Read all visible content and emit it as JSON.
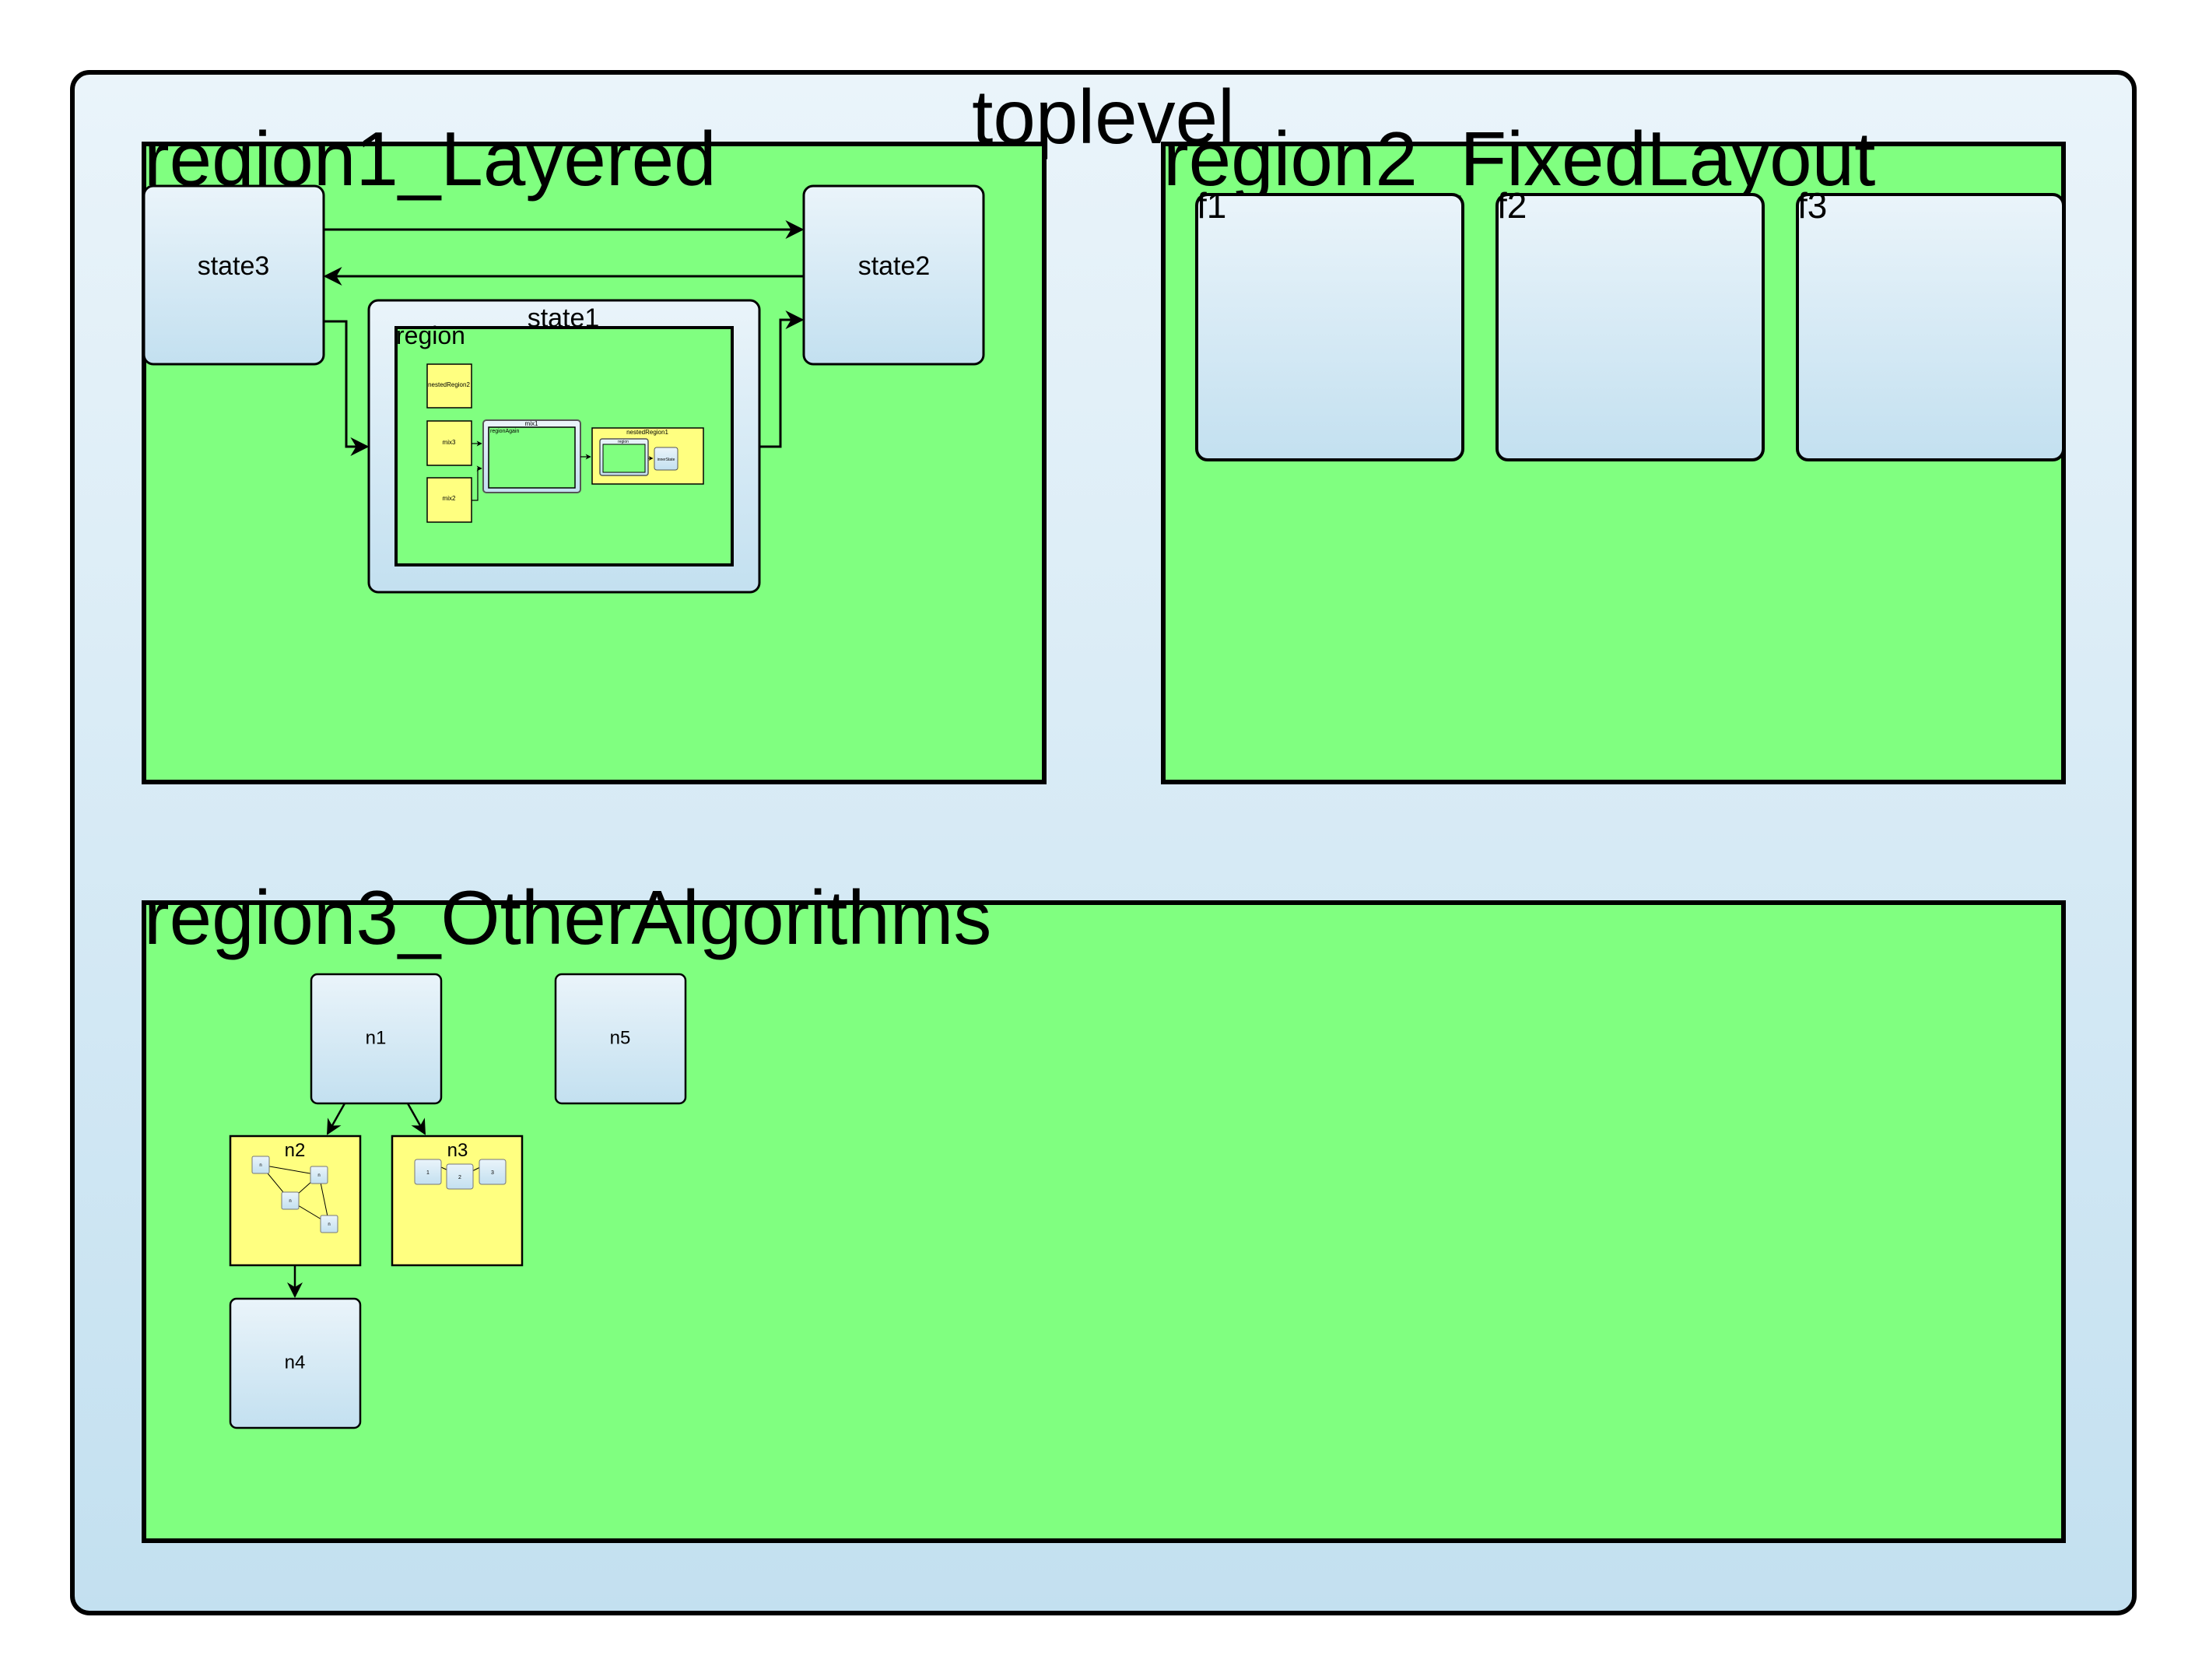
{
  "toplevel": {
    "title": "toplevel"
  },
  "region1": {
    "title": "region1_Layered",
    "state3": "state3",
    "state2": "state2",
    "state1": {
      "title": "state1",
      "region_label": "region",
      "nested_region2": "nestedRegion2",
      "mix3": "mix3",
      "mix2": "mix2",
      "mix1": "mix1",
      "region_again": "regionAgain",
      "nested_region1": "nestedRegion1",
      "nested_inner_region": "region",
      "nested_inner_state": "innerState"
    }
  },
  "region2": {
    "title": "region2_FixedLayout",
    "states": [
      "f1",
      "f2",
      "f3"
    ]
  },
  "region3": {
    "title": "region3_OtherAlgorithms",
    "n1": "n1",
    "n2": "n2",
    "n3": "n3",
    "n4": "n4",
    "n5": "n5",
    "n2_children": [
      "n",
      "n",
      "n",
      "n"
    ],
    "n3_children": [
      "1",
      "2",
      "3"
    ]
  },
  "colors": {
    "region_fill": "#80ff80",
    "nested_fill": "#ffff80",
    "state_gradient_top": "#eaf4fa",
    "state_gradient_bottom": "#c3e0f0",
    "stroke": "#000000"
  }
}
